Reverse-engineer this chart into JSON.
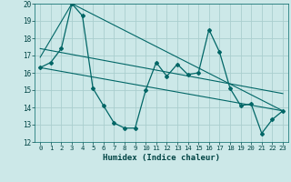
{
  "xlabel": "Humidex (Indice chaleur)",
  "background_color": "#cce8e8",
  "grid_color": "#aacece",
  "line_color": "#006666",
  "xlim": [
    -0.5,
    23.5
  ],
  "ylim": [
    12,
    20
  ],
  "yticks": [
    12,
    13,
    14,
    15,
    16,
    17,
    18,
    19,
    20
  ],
  "xticks": [
    0,
    1,
    2,
    3,
    4,
    5,
    6,
    7,
    8,
    9,
    10,
    11,
    12,
    13,
    14,
    15,
    16,
    17,
    18,
    19,
    20,
    21,
    22,
    23
  ],
  "series1_x": [
    0,
    1,
    2,
    3,
    4,
    5,
    6,
    7,
    8,
    9,
    10,
    11,
    12,
    13,
    14,
    15,
    16,
    17,
    18,
    19,
    20,
    21,
    22,
    23
  ],
  "series1_y": [
    16.3,
    16.6,
    17.4,
    20.0,
    19.3,
    15.1,
    14.1,
    13.1,
    12.8,
    12.8,
    15.0,
    16.6,
    15.8,
    16.5,
    15.9,
    16.0,
    18.5,
    17.2,
    15.1,
    14.1,
    14.2,
    12.5,
    13.3,
    13.8
  ],
  "series2_x": [
    0,
    23
  ],
  "series2_y": [
    16.3,
    13.8
  ],
  "series3_x": [
    0,
    3,
    23
  ],
  "series3_y": [
    16.9,
    20.0,
    13.8
  ],
  "series4_x": [
    0,
    23
  ],
  "series4_y": [
    17.4,
    14.8
  ]
}
